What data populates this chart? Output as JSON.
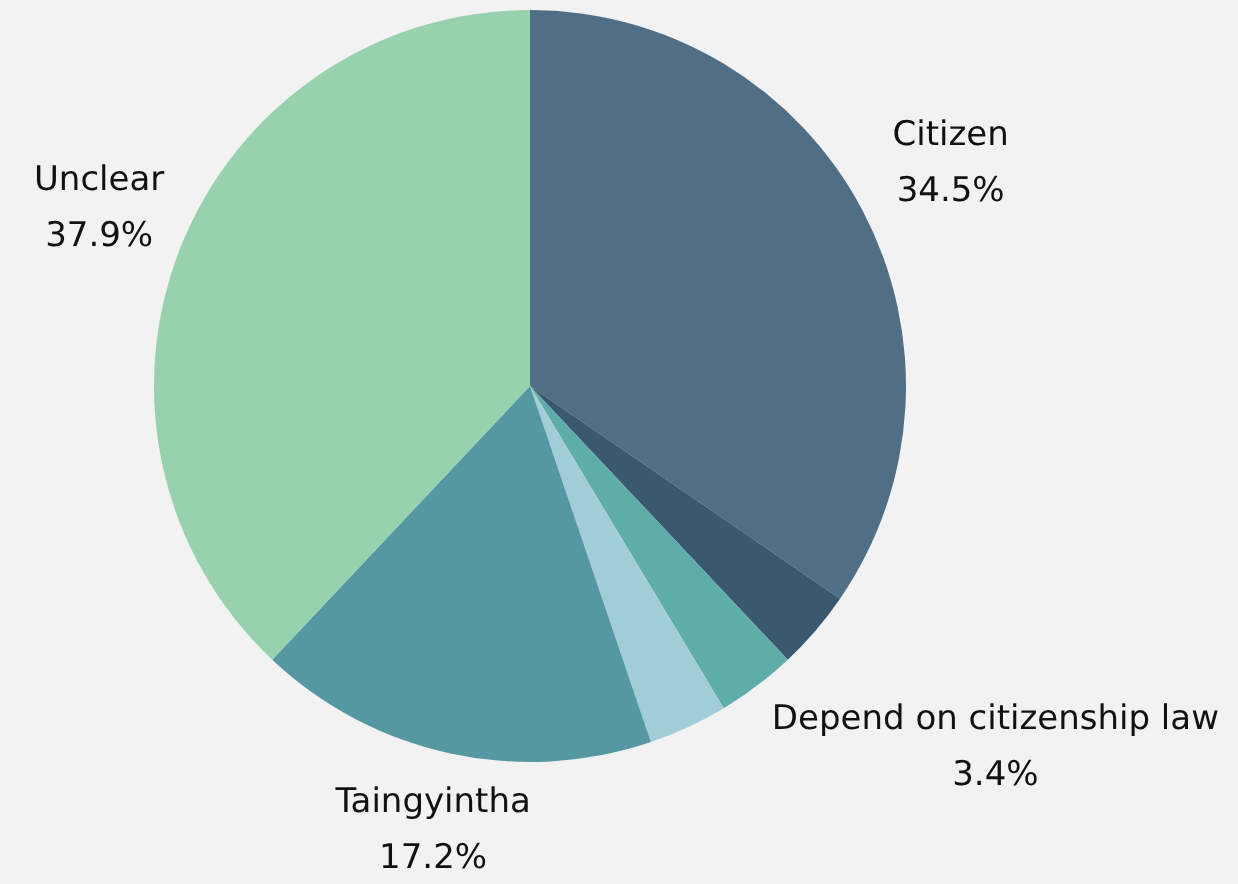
{
  "chart_data": {
    "type": "pie",
    "categories": [
      "Citizen",
      null,
      "Depend on citizenship law",
      null,
      "Taingyintha",
      "Unclear"
    ],
    "values": [
      34.5,
      3.4,
      3.4,
      3.4,
      17.2,
      37.9
    ],
    "value_labels": [
      "34.5%",
      null,
      "3.4%",
      null,
      "17.2%",
      "37.9%"
    ],
    "colors": [
      "#506e85",
      "#3a5870",
      "#5fada8",
      "#a3ccd9",
      "#5598a4",
      "#98d1ad"
    ]
  }
}
